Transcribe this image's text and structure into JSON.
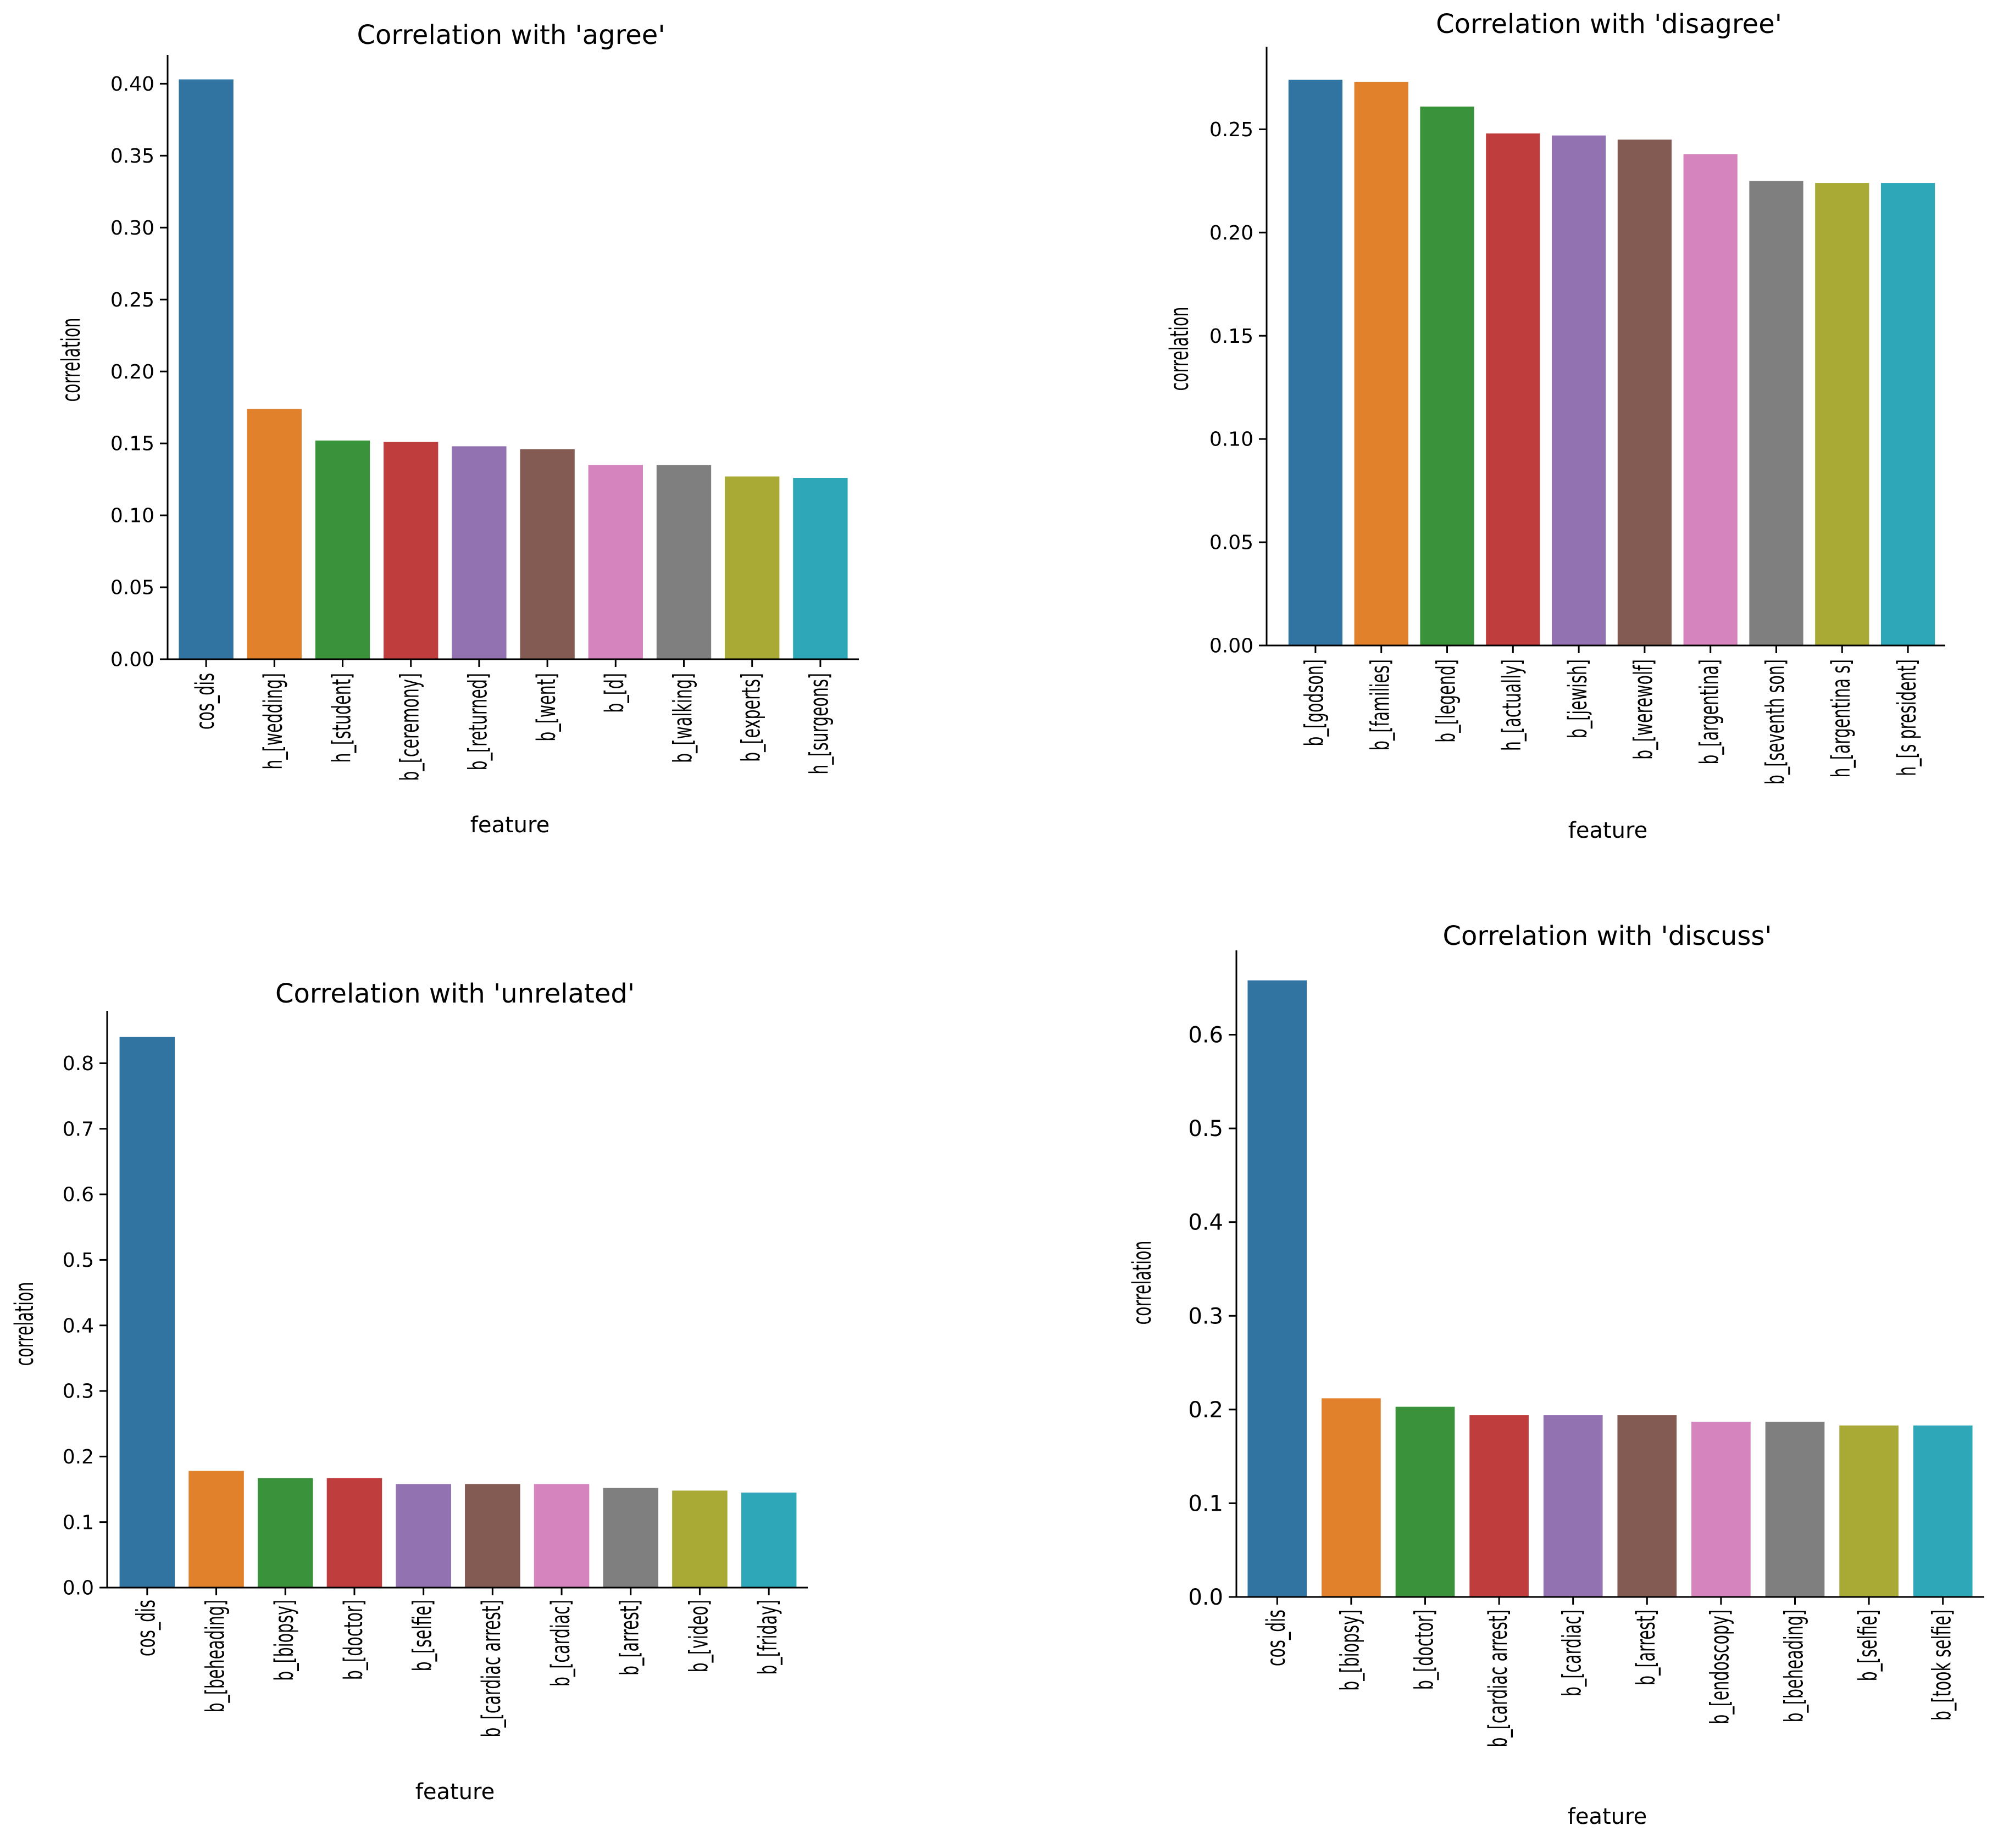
{
  "chart_data": [
    {
      "type": "bar",
      "title": "Correlation with 'agree'",
      "xlabel": "feature",
      "ylabel": "correlation",
      "ylim": [
        0,
        0.42
      ],
      "yticks": [
        "0.00",
        "0.05",
        "0.10",
        "0.15",
        "0.20",
        "0.25",
        "0.30",
        "0.35",
        "0.40"
      ],
      "categories": [
        "cos_dis",
        "h_[wedding]",
        "h_[student]",
        "b_[ceremony]",
        "b_[returned]",
        "b_[went]",
        "b_[d]",
        "b_[walking]",
        "b_[experts]",
        "h_[surgeons]"
      ],
      "values": [
        0.403,
        0.174,
        0.152,
        0.151,
        0.148,
        0.146,
        0.135,
        0.135,
        0.127,
        0.126
      ]
    },
    {
      "type": "bar",
      "title": "Correlation with 'disagree'",
      "xlabel": "feature",
      "ylabel": "correlation",
      "ylim": [
        0,
        0.29
      ],
      "yticks": [
        "0.00",
        "0.05",
        "0.10",
        "0.15",
        "0.20",
        "0.25"
      ],
      "categories": [
        "b_[godson]",
        "b_[families]",
        "b_[legend]",
        "h_[actually]",
        "b_[jewish]",
        "b_[werewolf]",
        "b_[argentina]",
        "b_[seventh son]",
        "h_[argentina s]",
        "h_[s president]"
      ],
      "values": [
        0.274,
        0.273,
        0.261,
        0.248,
        0.247,
        0.245,
        0.238,
        0.225,
        0.224,
        0.224
      ]
    },
    {
      "type": "bar",
      "title": "Correlation with 'unrelated'",
      "xlabel": "feature",
      "ylabel": "correlation",
      "ylim": [
        0,
        0.88
      ],
      "yticks": [
        "0.0",
        "0.1",
        "0.2",
        "0.3",
        "0.4",
        "0.5",
        "0.6",
        "0.7",
        "0.8"
      ],
      "categories": [
        "cos_dis",
        "b_[beheading]",
        "b_[biopsy]",
        "b_[doctor]",
        "b_[selfie]",
        "b_[cardiac arrest]",
        "b_[cardiac]",
        "b_[arrest]",
        "b_[video]",
        "b_[friday]"
      ],
      "values": [
        0.84,
        0.178,
        0.167,
        0.167,
        0.158,
        0.158,
        0.158,
        0.152,
        0.148,
        0.145
      ]
    },
    {
      "type": "bar",
      "title": "Correlation with 'discuss'",
      "xlabel": "feature",
      "ylabel": "correlation",
      "ylim": [
        0,
        0.69
      ],
      "yticks": [
        "0.0",
        "0.1",
        "0.2",
        "0.3",
        "0.4",
        "0.5",
        "0.6"
      ],
      "categories": [
        "cos_dis",
        "b_[biopsy]",
        "b_[doctor]",
        "b_[cardiac arrest]",
        "b_[cardiac]",
        "b_[arrest]",
        "b_[endoscopy]",
        "b_[beheading]",
        "b_[selfie]",
        "b_[took selfie]"
      ],
      "values": [
        0.658,
        0.212,
        0.203,
        0.194,
        0.194,
        0.194,
        0.187,
        0.187,
        0.183,
        0.183
      ]
    }
  ],
  "palette": [
    "#3274a1",
    "#e1812c",
    "#3a923a",
    "#c03d3e",
    "#9372b2",
    "#845b53",
    "#d684bd",
    "#7f7f7f",
    "#a9aa35",
    "#2ea8b8"
  ]
}
